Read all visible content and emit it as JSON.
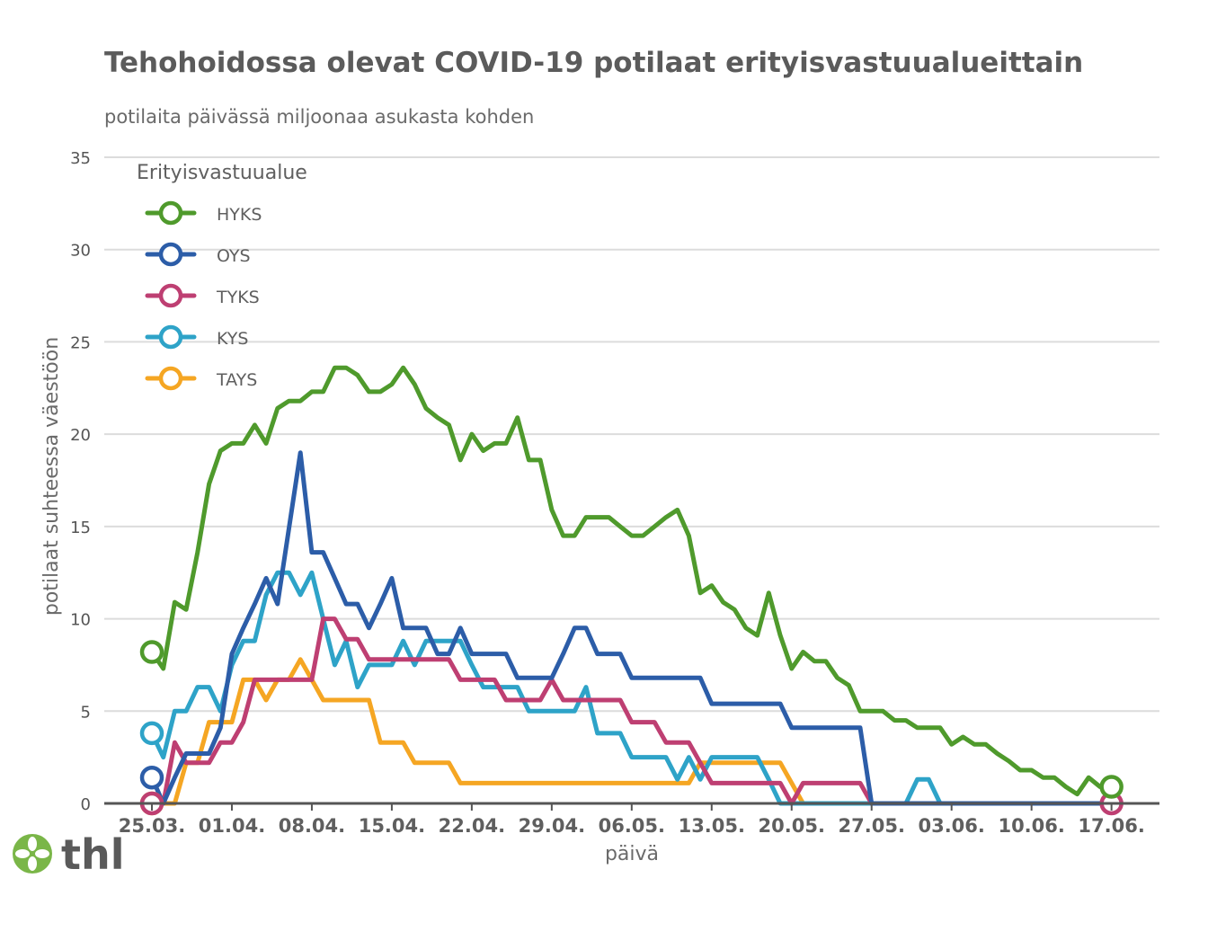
{
  "chart_data": {
    "type": "line",
    "title": "Tehohoidossa olevat COVID-19 potilaat erityisvastuualueittain",
    "subtitle": "potilaita päivässä miljoonaa asukasta kohden",
    "xlabel": "päivä",
    "ylabel": "potilaat suhteessa väestöön",
    "ylim": [
      0,
      35
    ],
    "yticks": [
      0,
      5,
      10,
      15,
      20,
      25,
      30,
      35
    ],
    "x_start_label": "25.03.",
    "xticks": [
      {
        "label": "25.03.",
        "day": 0
      },
      {
        "label": "01.04.",
        "day": 7
      },
      {
        "label": "08.04.",
        "day": 14
      },
      {
        "label": "15.04.",
        "day": 21
      },
      {
        "label": "22.04.",
        "day": 28
      },
      {
        "label": "29.04.",
        "day": 35
      },
      {
        "label": "06.05.",
        "day": 42
      },
      {
        "label": "13.05.",
        "day": 49
      },
      {
        "label": "20.05.",
        "day": 56
      },
      {
        "label": "27.05.",
        "day": 63
      },
      {
        "label": "03.06.",
        "day": 70
      },
      {
        "label": "10.06.",
        "day": 77
      },
      {
        "label": "17.06.",
        "day": 84
      }
    ],
    "grid": true,
    "legend": {
      "title": "Erityisvastuualue",
      "position": "top-left"
    },
    "series": [
      {
        "name": "HYKS",
        "color": "#4f9a2c",
        "values": [
          8.2,
          7.3,
          10.9,
          10.5,
          13.6,
          17.3,
          19.1,
          19.5,
          19.5,
          20.5,
          19.5,
          21.4,
          21.8,
          21.8,
          22.3,
          22.3,
          23.6,
          23.6,
          23.2,
          22.3,
          22.3,
          22.7,
          23.6,
          22.7,
          21.4,
          20.9,
          20.5,
          18.6,
          20.0,
          19.1,
          19.5,
          19.5,
          20.9,
          18.6,
          18.6,
          15.9,
          14.5,
          14.5,
          15.5,
          15.5,
          15.5,
          15.0,
          14.5,
          14.5,
          15.0,
          15.5,
          15.9,
          14.5,
          11.4,
          11.8,
          10.9,
          10.5,
          9.5,
          9.1,
          11.4,
          9.1,
          7.3,
          8.2,
          7.7,
          7.7,
          6.8,
          6.4,
          5.0,
          5.0,
          5.0,
          4.5,
          4.5,
          4.1,
          4.1,
          4.1,
          3.2,
          3.6,
          3.2,
          3.2,
          2.7,
          2.3,
          1.8,
          1.8,
          1.4,
          1.4,
          0.9,
          0.5,
          1.4,
          0.9,
          0.9
        ]
      },
      {
        "name": "OYS",
        "color": "#2c5da8",
        "values": [
          1.4,
          0,
          1.4,
          2.7,
          2.7,
          2.7,
          4.1,
          8.1,
          9.5,
          10.8,
          12.2,
          10.8,
          14.9,
          19.0,
          13.6,
          13.6,
          12.2,
          10.8,
          10.8,
          9.5,
          10.8,
          12.2,
          9.5,
          9.5,
          9.5,
          8.1,
          8.1,
          9.5,
          8.1,
          8.1,
          8.1,
          8.1,
          6.8,
          6.8,
          6.8,
          6.8,
          8.1,
          9.5,
          9.5,
          8.1,
          8.1,
          8.1,
          6.8,
          6.8,
          6.8,
          6.8,
          6.8,
          6.8,
          6.8,
          5.4,
          5.4,
          5.4,
          5.4,
          5.4,
          5.4,
          5.4,
          4.1,
          4.1,
          4.1,
          4.1,
          4.1,
          4.1,
          4.1,
          0,
          0,
          0,
          0,
          0,
          0,
          0,
          0,
          0,
          0,
          0,
          0,
          0,
          0,
          0,
          0,
          0,
          0,
          0,
          0,
          0,
          0
        ]
      },
      {
        "name": "TYKS",
        "color": "#be3f72",
        "values": [
          0,
          0,
          3.3,
          2.2,
          2.2,
          2.2,
          3.3,
          3.3,
          4.4,
          6.7,
          6.7,
          6.7,
          6.7,
          6.7,
          6.7,
          10.0,
          10.0,
          8.9,
          8.9,
          7.8,
          7.8,
          7.8,
          7.8,
          7.8,
          7.8,
          7.8,
          7.8,
          6.7,
          6.7,
          6.7,
          6.7,
          5.6,
          5.6,
          5.6,
          5.6,
          6.7,
          5.6,
          5.6,
          5.6,
          5.6,
          5.6,
          5.6,
          4.4,
          4.4,
          4.4,
          3.3,
          3.3,
          3.3,
          2.2,
          1.1,
          1.1,
          1.1,
          1.1,
          1.1,
          1.1,
          1.1,
          0,
          1.1,
          1.1,
          1.1,
          1.1,
          1.1,
          1.1,
          0,
          0,
          0,
          0,
          0,
          0,
          0,
          0,
          0,
          0,
          0,
          0,
          0,
          0,
          0,
          0,
          0,
          0,
          0,
          0,
          0,
          0
        ]
      },
      {
        "name": "KYS",
        "color": "#2ea3c8",
        "values": [
          3.8,
          2.5,
          5.0,
          5.0,
          6.3,
          6.3,
          5.0,
          7.5,
          8.8,
          8.8,
          11.3,
          12.5,
          12.5,
          11.3,
          12.5,
          10.0,
          7.5,
          8.8,
          6.3,
          7.5,
          7.5,
          7.5,
          8.8,
          7.5,
          8.8,
          8.8,
          8.8,
          8.8,
          7.5,
          6.3,
          6.3,
          6.3,
          6.3,
          5.0,
          5.0,
          5.0,
          5.0,
          5.0,
          6.3,
          3.8,
          3.8,
          3.8,
          2.5,
          2.5,
          2.5,
          2.5,
          1.3,
          2.5,
          1.3,
          2.5,
          2.5,
          2.5,
          2.5,
          2.5,
          1.3,
          0,
          0,
          0,
          0,
          0,
          0,
          0,
          0,
          0,
          0,
          0,
          0,
          1.3,
          1.3,
          0,
          0,
          0,
          0,
          0,
          0,
          0,
          0,
          0,
          0,
          0,
          0,
          0,
          0,
          0,
          0
        ]
      },
      {
        "name": "TAYS",
        "color": "#f5a623",
        "values": [
          0,
          0,
          0,
          2.2,
          2.2,
          4.4,
          4.4,
          4.4,
          6.7,
          6.7,
          5.6,
          6.7,
          6.7,
          7.8,
          6.7,
          5.6,
          5.6,
          5.6,
          5.6,
          5.6,
          3.3,
          3.3,
          3.3,
          2.2,
          2.2,
          2.2,
          2.2,
          1.1,
          1.1,
          1.1,
          1.1,
          1.1,
          1.1,
          1.1,
          1.1,
          1.1,
          1.1,
          1.1,
          1.1,
          1.1,
          1.1,
          1.1,
          1.1,
          1.1,
          1.1,
          1.1,
          1.1,
          1.1,
          2.2,
          2.2,
          2.2,
          2.2,
          2.2,
          2.2,
          2.2,
          2.2,
          1.1,
          0,
          0,
          0,
          0,
          0,
          0,
          0,
          0,
          0,
          0,
          0,
          0,
          0,
          0,
          0,
          0,
          0,
          0,
          0,
          0,
          0,
          0,
          0,
          0,
          0,
          0,
          0,
          0
        ]
      }
    ]
  },
  "logo": {
    "text": "thl"
  }
}
